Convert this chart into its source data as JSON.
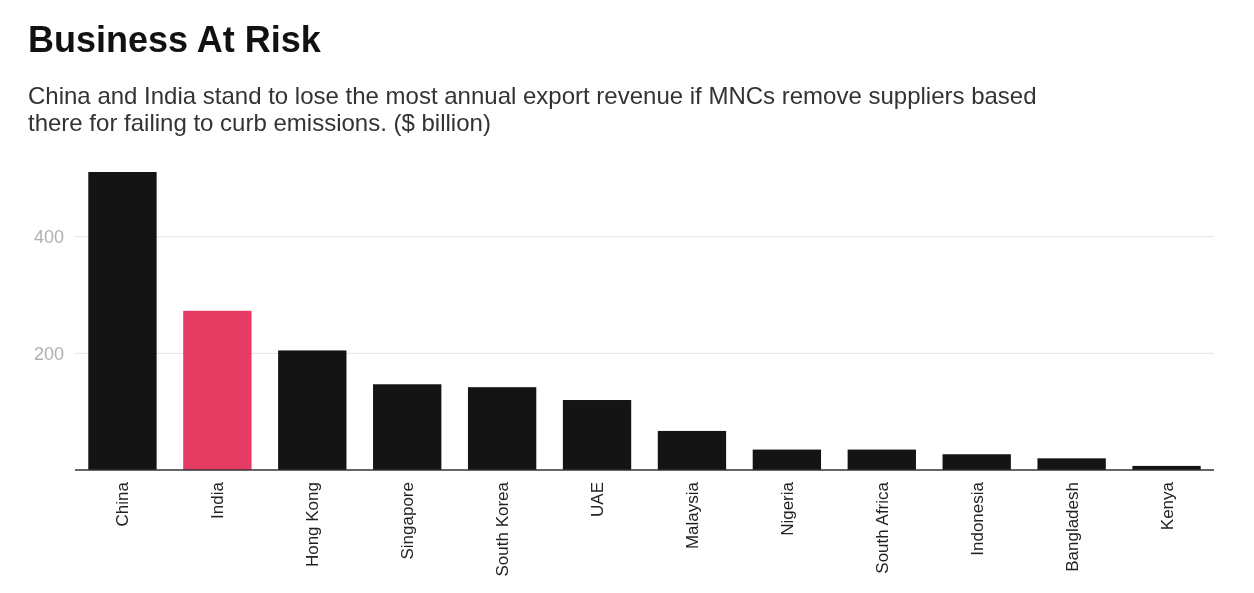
{
  "chart_data": {
    "type": "bar",
    "title": "Business At Risk",
    "subtitle": "China and India stand to lose the most annual export revenue if MNCs remove suppliers based there for failing to curb emissions. ($ billion)",
    "categories": [
      "China",
      "India",
      "Hong Kong",
      "Singapore",
      "South Korea",
      "UAE",
      "Malaysia",
      "Nigeria",
      "South Africa",
      "Indonesia",
      "Bangladesh",
      "Kenya"
    ],
    "values": [
      511,
      273,
      205,
      147,
      142,
      120,
      67,
      35,
      35,
      27,
      20,
      7
    ],
    "colors": [
      "#141414",
      "#e63c64",
      "#141414",
      "#141414",
      "#141414",
      "#141414",
      "#141414",
      "#141414",
      "#141414",
      "#141414",
      "#141414",
      "#141414"
    ],
    "ylim": [
      0,
      511
    ],
    "yticks": [
      200,
      400
    ],
    "grid": "y"
  }
}
